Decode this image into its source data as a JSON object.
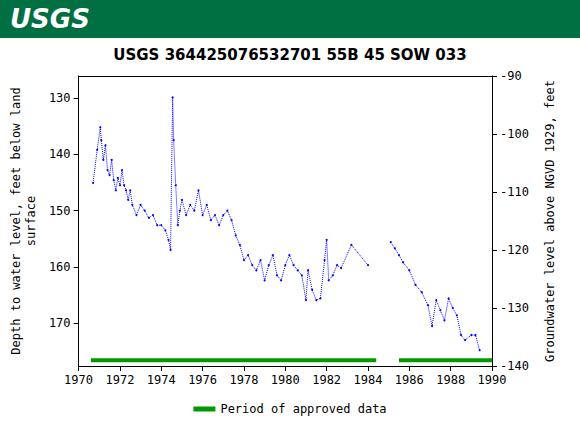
{
  "chart_data": {
    "type": "line",
    "logo_text": "USGS",
    "title": "USGS 364425076532701 55B 45 SOW 033",
    "y_label": "Depth to water level, feet below land\nsurface",
    "y2_label": "Groundwater level above NGVD 1929, feet",
    "xlim": [
      1970,
      1990
    ],
    "xticks": [
      1970,
      1972,
      1974,
      1976,
      1978,
      1980,
      1982,
      1984,
      1986,
      1988,
      1990
    ],
    "ylim": [
      177.6,
      126.1
    ],
    "yticks": [
      130,
      140,
      150,
      160,
      170
    ],
    "y2lim": [
      -140,
      -90
    ],
    "y2ticks": [
      -90,
      -100,
      -110,
      -120,
      -130,
      -140
    ],
    "grid": false,
    "legend": "bottom",
    "series": [
      {
        "color": "#0000ff",
        "marker": "dot",
        "line_style": "dotted",
        "x": [
          1970.7,
          1970.9,
          1971.05,
          1971.1,
          1971.2,
          1971.3,
          1971.4,
          1971.5,
          1971.6,
          1971.7,
          1971.8,
          1971.9,
          1972.0,
          1972.1,
          1972.2,
          1972.3,
          1972.4,
          1972.5,
          1972.6,
          1972.8,
          1973.0,
          1973.2,
          1973.4,
          1973.6,
          1973.8,
          1974.0,
          1974.2,
          1974.35,
          1974.45,
          1974.55,
          1974.6,
          1974.7,
          1974.8,
          1974.9,
          1975.0,
          1975.2,
          1975.4,
          1975.6,
          1975.8,
          1976.0,
          1976.2,
          1976.4,
          1976.6,
          1976.8,
          1977.0,
          1977.2,
          1977.4,
          1977.6,
          1977.8,
          1978.0,
          1978.2,
          1978.4,
          1978.6,
          1978.8,
          1979.0,
          1979.2,
          1979.4,
          1979.6,
          1979.8,
          1980.0,
          1980.2,
          1980.4,
          1980.6,
          1980.8,
          1981.0,
          1981.1,
          1981.3,
          1981.5,
          1981.7,
          1981.9,
          1982.0,
          1982.1,
          1982.3,
          1982.5,
          1982.7,
          1983.2,
          1984.0,
          null,
          1985.1,
          1985.3,
          1985.5,
          1985.7,
          1986.0,
          1986.3,
          1986.6,
          1986.9,
          1987.1,
          1987.3,
          1987.5,
          1987.7,
          1987.9,
          1988.1,
          1988.3,
          1988.5,
          1988.7,
          1989.0,
          1989.2,
          1989.4
        ],
        "values": [
          145.1,
          139.2,
          135.2,
          137.5,
          141,
          138.4,
          142.8,
          143.7,
          141,
          144.6,
          146.4,
          144.2,
          145.5,
          142.8,
          145.5,
          146.4,
          148.1,
          146.4,
          149,
          150.8,
          149,
          150,
          151.3,
          150.8,
          152.6,
          152.6,
          153.5,
          155.2,
          157,
          129.9,
          137.5,
          145.5,
          152.6,
          150,
          148.1,
          150.8,
          149,
          150,
          146.4,
          150.8,
          149,
          151.7,
          150.8,
          152.6,
          150.8,
          150,
          151.7,
          154.4,
          156.1,
          158.8,
          157.9,
          159.7,
          160.6,
          158.8,
          162.4,
          159.7,
          157.9,
          161.5,
          162.4,
          159.7,
          157.9,
          159.7,
          160.6,
          161.5,
          165.9,
          160.6,
          164.1,
          165.9,
          165.6,
          158.8,
          155.2,
          162.4,
          161.5,
          159.7,
          160.2,
          156.1,
          159.7,
          null,
          155.6,
          156.7,
          157.9,
          159.2,
          160.6,
          163.2,
          164.5,
          166.8,
          170.5,
          165.9,
          167.7,
          169.5,
          165.6,
          167.3,
          168.6,
          172.1,
          173,
          172.1,
          172.1,
          174.8
        ]
      },
      {
        "name": "Period of approved data",
        "color": "#009900",
        "line_style": "solid",
        "x": [
          1970.6,
          1984.4,
          null,
          1985.5,
          1990
        ],
        "values": [
          176.6,
          176.6,
          null,
          176.6,
          176.6
        ]
      }
    ]
  }
}
